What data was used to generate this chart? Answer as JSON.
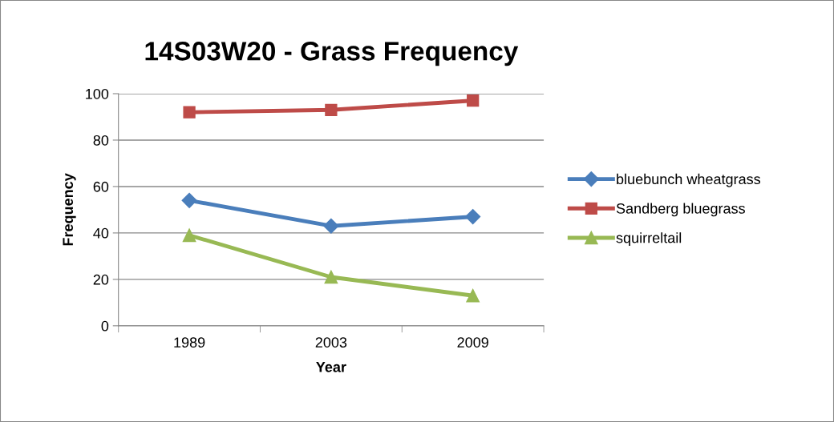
{
  "chart_data": {
    "type": "line",
    "title": "14S03W20 - Grass Frequency",
    "xlabel": "Year",
    "ylabel": "Frequency",
    "categories": [
      "1989",
      "2003",
      "2009"
    ],
    "series": [
      {
        "name": "bluebunch wheatgrass",
        "color": "#4a7ebb",
        "marker": "diamond",
        "values": [
          54,
          43,
          47
        ]
      },
      {
        "name": "Sandberg bluegrass",
        "color": "#be4b48",
        "marker": "square",
        "values": [
          92,
          93,
          97
        ]
      },
      {
        "name": "squirreltail",
        "color": "#98b954",
        "marker": "triangle",
        "values": [
          39,
          21,
          13
        ]
      }
    ],
    "ylim": [
      0,
      100
    ],
    "yticks": [
      0,
      20,
      40,
      60,
      80,
      100
    ],
    "grid": "y",
    "legend": "right",
    "line_style": "solid"
  }
}
